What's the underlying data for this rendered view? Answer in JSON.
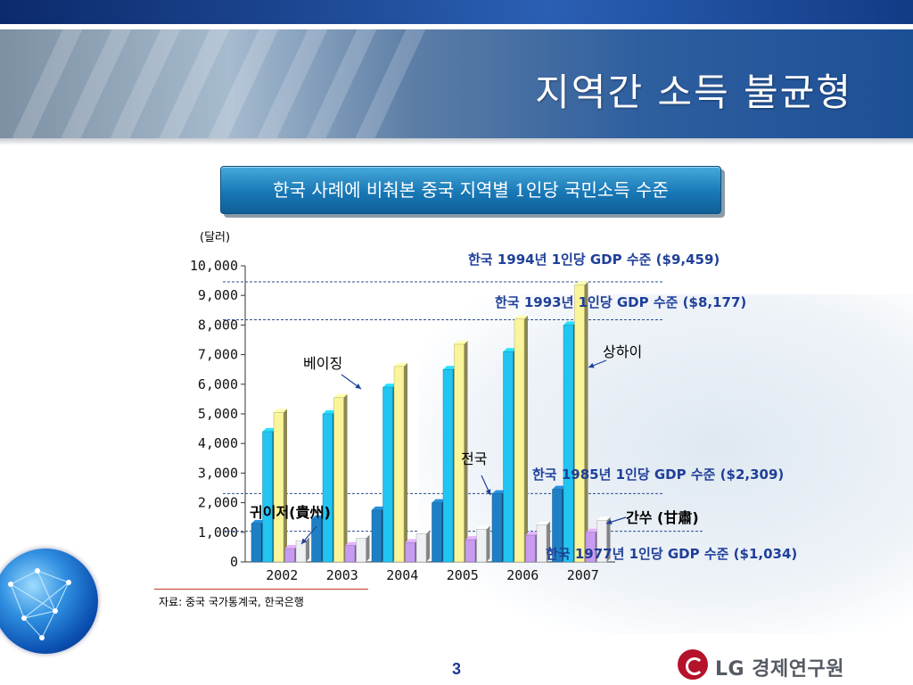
{
  "slide": {
    "title": "지역간 소득 불균형",
    "subtitle": "한국 사례에 비춰본 중국 지역별 1인당 국민소득 수준",
    "source": "자료: 중국 국가통계국, 한국은행",
    "page_number": "3"
  },
  "logo": {
    "text": "LG 경제연구원",
    "brand_color": "#b5122b"
  },
  "chart_data": {
    "type": "bar",
    "unit_label": "(달러)",
    "categories": [
      "2002",
      "2003",
      "2004",
      "2005",
      "2006",
      "2007"
    ],
    "ylim": [
      0,
      10000
    ],
    "yticks": [
      0,
      1000,
      2000,
      3000,
      4000,
      5000,
      6000,
      7000,
      8000,
      9000,
      10000
    ],
    "ytick_labels": [
      "0",
      "1,000",
      "2,000",
      "3,000",
      "4,000",
      "5,000",
      "6,000",
      "7,000",
      "8,000",
      "9,000",
      "10,000"
    ],
    "series": [
      {
        "name": "전국",
        "color": "#1f7fc4",
        "values": [
          1300,
          1450,
          1750,
          2000,
          2300,
          2450
        ]
      },
      {
        "name": "베이징",
        "color": "#22c4f2",
        "values": [
          4400,
          5000,
          5900,
          6500,
          7100,
          8000
        ]
      },
      {
        "name": "상하이",
        "color": "#fbf59a",
        "values": [
          5050,
          5550,
          6600,
          7350,
          8200,
          9350
        ]
      },
      {
        "name": "귀이저(貴州)",
        "color": "#c79cf0",
        "values": [
          450,
          550,
          650,
          750,
          900,
          1000
        ]
      },
      {
        "name": "간쑤 (甘肅)",
        "color": "#eef0f2",
        "values": [
          720,
          800,
          950,
          1100,
          1250,
          1400
        ]
      }
    ],
    "reference_lines": [
      {
        "label": "한국 1994년 1인당 GDP 수준 ($9,459)",
        "value": 9459
      },
      {
        "label": "한국 1993년 1인당 GDP 수준 ($8,177)",
        "value": 8177
      },
      {
        "label": "한국 1985년 1인당 GDP 수준 ($2,309)",
        "value": 2309
      },
      {
        "label": "한국 1977년 1인당 GDP 수준 ($1,034)",
        "value": 1034
      }
    ],
    "grid": false,
    "legend": "none"
  }
}
